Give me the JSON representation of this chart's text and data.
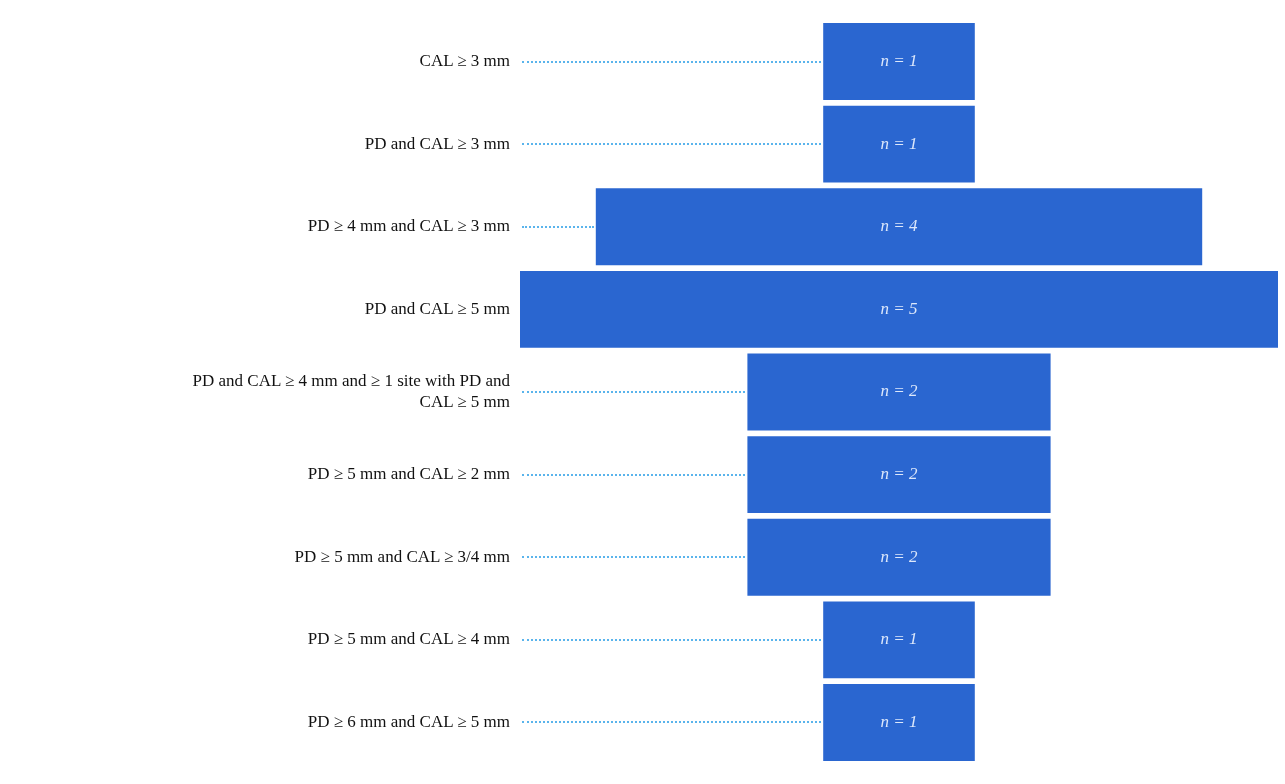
{
  "chart_data": {
    "type": "other",
    "categories": [
      "CAL ≥ 3 mm",
      "PD and CAL ≥ 3 mm",
      "PD ≥ 4 mm and CAL ≥ 3 mm",
      "PD and CAL ≥ 5 mm",
      "PD and CAL ≥ 4 mm and ≥ 1 site with PD and CAL ≥ 5 mm",
      "PD ≥ 5 mm and CAL ≥ 2 mm",
      "PD ≥ 5 mm and CAL ≥ 3/4 mm",
      "PD ≥ 5 mm and CAL ≥ 4 mm",
      "PD ≥ 6 mm and CAL ≥ 5 mm"
    ],
    "values": [
      1,
      1,
      4,
      5,
      2,
      2,
      2,
      1,
      1
    ],
    "value_labels": [
      "n = 1",
      "n = 1",
      "n = 4",
      "n = 5",
      "n = 2",
      "n = 2",
      "n = 2",
      "n = 1",
      "n = 1"
    ],
    "color": "#2a66d0"
  }
}
